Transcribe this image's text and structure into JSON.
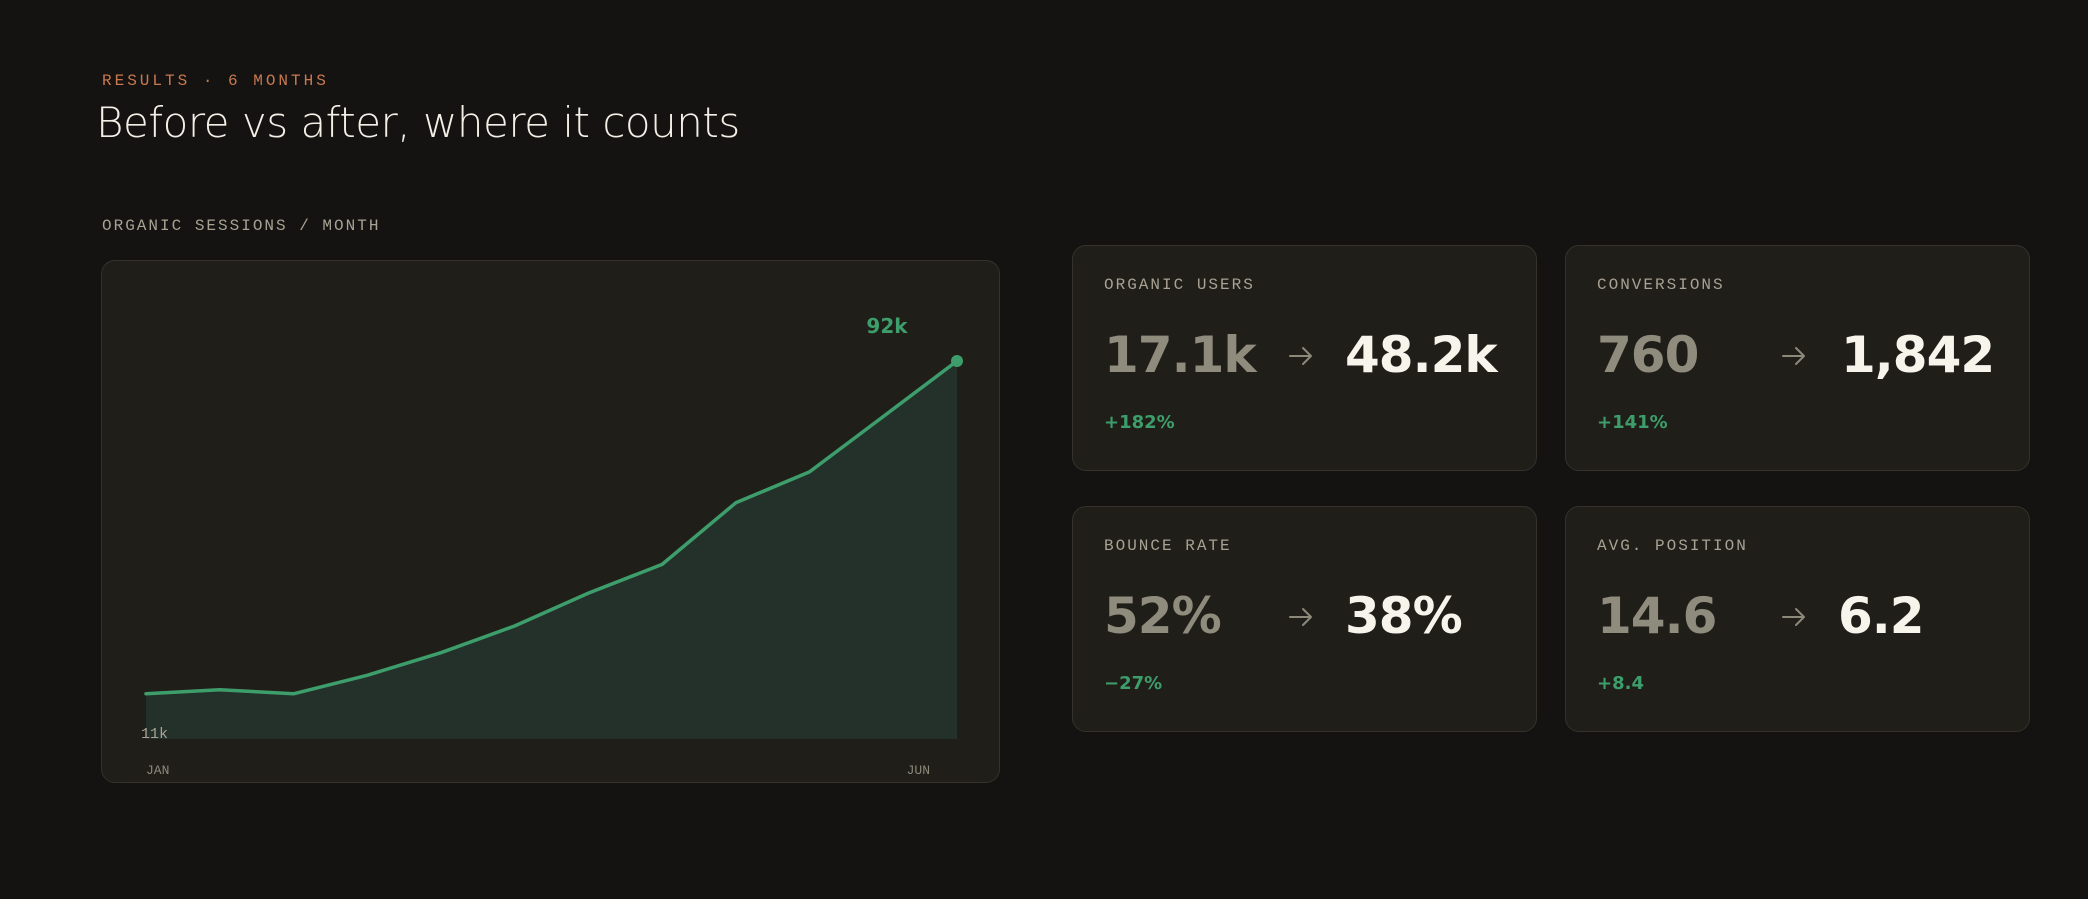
{
  "header": {
    "eyebrow": "RESULTS · 6 MONTHS",
    "title": "Before vs after, where it counts"
  },
  "chart_section": {
    "label": "ORGANIC SESSIONS / MONTH"
  },
  "chart_data": {
    "type": "area",
    "title": "ORGANIC SESSIONS / MONTH",
    "x_tick_labels": [
      "JAN",
      "JUN"
    ],
    "start_label": "11k",
    "end_label": "92k",
    "values": [
      11,
      12,
      11,
      15.5,
      21,
      27.5,
      35.5,
      42.5,
      57.5,
      65,
      78.5,
      92
    ],
    "ylim": [
      0,
      92
    ],
    "line_color": "#3d9e6b",
    "fill_color": "#24302a",
    "grid": false,
    "legend": "none"
  },
  "stats": [
    {
      "label": "ORGANIC USERS",
      "before": "17.1k",
      "after": "48.2k",
      "delta": "+182%"
    },
    {
      "label": "CONVERSIONS",
      "before": "760",
      "after": "1,842",
      "delta": "+141%"
    },
    {
      "label": "BOUNCE RATE",
      "before": "52%",
      "after": "38%",
      "delta": "−27%"
    },
    {
      "label": "AVG. POSITION",
      "before": "14.6",
      "after": "6.2",
      "delta": "+8.4"
    }
  ],
  "icons": {
    "arrow": "arrow-right-icon"
  },
  "colors": {
    "background": "#141311",
    "card": "#201e19",
    "accent": "#c8794f",
    "positive": "#3d9e6b"
  }
}
